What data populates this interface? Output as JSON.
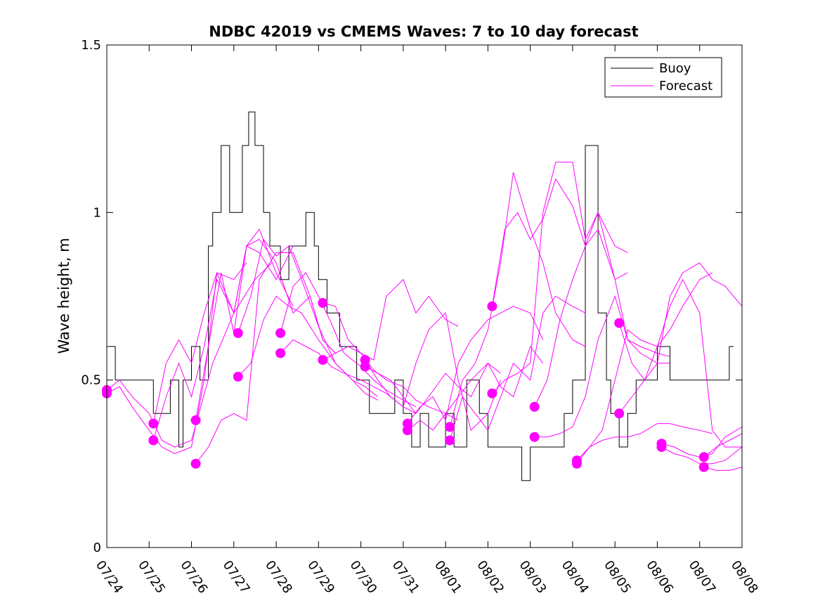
{
  "chart_data": {
    "type": "line",
    "title": "NDBC 42019 vs CMEMS Waves: 7 to 10 day forecast",
    "xlabel": "",
    "ylabel": "Wave height, m",
    "xlim": [
      0,
      15
    ],
    "ylim": [
      0,
      1.5
    ],
    "x_tick_labels": [
      "07/24",
      "07/25",
      "07/26",
      "07/27",
      "07/28",
      "07/29",
      "07/30",
      "07/31",
      "08/01",
      "08/02",
      "08/03",
      "08/04",
      "08/05",
      "08/06",
      "08/07",
      "08/08"
    ],
    "y_ticks": [
      0,
      0.5,
      1,
      1.5
    ],
    "y_tick_labels": [
      "0",
      "0.5",
      "1",
      "1.5"
    ],
    "legend": {
      "position": "top-right",
      "entries": [
        {
          "label": "Buoy",
          "color": "#000000"
        },
        {
          "label": "Forecast",
          "color": "#ff00ff"
        }
      ]
    },
    "series": [
      {
        "name": "Buoy",
        "color": "#000000",
        "x": [
          0,
          0.15,
          0.2,
          0.3,
          0.9,
          1.1,
          1.3,
          1.5,
          1.7,
          1.8,
          2.0,
          2.2,
          2.4,
          2.5,
          2.6,
          2.7,
          2.9,
          3.0,
          3.2,
          3.35,
          3.5,
          3.7,
          3.85,
          4.0,
          4.1,
          4.3,
          4.45,
          4.7,
          4.9,
          5.0,
          5.2,
          5.4,
          5.5,
          5.7,
          5.9,
          6.0,
          6.2,
          6.5,
          6.8,
          7.0,
          7.2,
          7.4,
          7.5,
          7.6,
          7.8,
          8.0,
          8.2,
          8.5,
          8.8,
          9.0,
          9.3,
          9.6,
          9.8,
          10.0,
          10.3,
          10.6,
          10.8,
          11.0,
          11.3,
          11.6,
          11.8,
          11.9,
          12.0,
          12.1,
          12.3,
          12.5,
          12.8,
          13.0,
          13.3,
          13.5,
          14.0,
          14.5,
          14.7,
          14.8
        ],
        "y": [
          0.6,
          0.6,
          0.5,
          0.5,
          0.5,
          0.4,
          0.4,
          0.5,
          0.3,
          0.5,
          0.6,
          0.5,
          0.9,
          1.0,
          1.0,
          1.2,
          1.0,
          1.0,
          1.2,
          1.3,
          1.2,
          1.0,
          0.9,
          0.9,
          0.8,
          0.9,
          0.9,
          1.0,
          0.9,
          0.8,
          0.7,
          0.7,
          0.6,
          0.6,
          0.5,
          0.5,
          0.4,
          0.4,
          0.5,
          0.4,
          0.3,
          0.4,
          0.4,
          0.3,
          0.3,
          0.4,
          0.3,
          0.5,
          0.4,
          0.3,
          0.3,
          0.3,
          0.2,
          0.3,
          0.3,
          0.3,
          0.4,
          0.5,
          1.2,
          0.7,
          0.5,
          0.4,
          0.4,
          0.3,
          0.4,
          0.5,
          0.5,
          0.6,
          0.5,
          0.5,
          0.5,
          0.5,
          0.6,
          0.6
        ]
      },
      {
        "name": "Forecast",
        "color": "#ff00ff",
        "x": [
          0,
          0.3,
          0.6,
          1.0,
          1.3,
          1.6,
          2.0,
          2.5,
          3.0,
          3.5,
          3.9
        ],
        "y": [
          0.47,
          0.5,
          0.45,
          0.4,
          0.32,
          0.3,
          0.32,
          0.55,
          0.7,
          0.8,
          0.85
        ]
      },
      {
        "name": "Forecast",
        "color": "#ff00ff",
        "x": [
          0,
          0.3,
          0.6,
          1.0,
          1.3,
          1.6,
          2.0,
          2.3,
          2.6,
          3.0,
          3.3
        ],
        "y": [
          0.46,
          0.48,
          0.42,
          0.35,
          0.3,
          0.28,
          0.3,
          0.5,
          0.82,
          0.8,
          0.85
        ]
      },
      {
        "name": "Forecast",
        "color": "#ff00ff",
        "x": [
          1.1,
          1.4,
          1.7,
          2.0,
          2.3,
          2.6,
          3.0,
          3.3,
          3.6,
          4.0,
          4.4
        ],
        "y": [
          0.37,
          0.55,
          0.62,
          0.55,
          0.7,
          0.82,
          0.7,
          0.9,
          0.88,
          0.8,
          0.9
        ]
      },
      {
        "name": "Forecast",
        "color": "#ff00ff",
        "x": [
          1.1,
          1.4,
          1.7,
          2.0,
          2.3,
          2.6,
          3.0,
          3.3,
          3.6,
          4.0,
          4.4
        ],
        "y": [
          0.32,
          0.45,
          0.55,
          0.45,
          0.6,
          0.8,
          0.7,
          0.9,
          0.95,
          0.82,
          0.72
        ]
      },
      {
        "name": "Forecast",
        "color": "#ff00ff",
        "x": [
          2.1,
          2.4,
          2.7,
          3.0,
          3.3,
          3.6,
          4.0,
          4.4,
          4.8,
          5.1,
          5.4
        ],
        "y": [
          0.25,
          0.3,
          0.38,
          0.4,
          0.38,
          0.8,
          0.88,
          0.88,
          0.75,
          0.62,
          0.58
        ]
      },
      {
        "name": "Forecast",
        "color": "#ff00ff",
        "x": [
          2.1,
          2.4,
          2.7,
          3.0,
          3.3,
          3.6,
          4.0,
          4.4,
          4.8,
          5.1,
          5.4
        ],
        "y": [
          0.38,
          0.6,
          0.82,
          0.64,
          0.9,
          0.92,
          0.85,
          0.7,
          0.75,
          0.62,
          0.58
        ]
      },
      {
        "name": "Forecast",
        "color": "#ff00ff",
        "x": [
          3.1,
          3.4,
          3.7,
          4.0,
          4.3,
          4.6,
          5.0,
          5.4,
          5.8,
          6.1,
          6.4
        ],
        "y": [
          0.64,
          0.75,
          0.92,
          0.87,
          0.9,
          0.8,
          0.66,
          0.55,
          0.5,
          0.48,
          0.45
        ]
      },
      {
        "name": "Forecast",
        "color": "#ff00ff",
        "x": [
          3.1,
          3.4,
          3.7,
          4.0,
          4.3,
          4.6,
          5.0,
          5.4,
          5.8,
          6.1,
          6.4
        ],
        "y": [
          0.51,
          0.55,
          0.68,
          0.75,
          0.72,
          0.7,
          0.62,
          0.55,
          0.5,
          0.46,
          0.44
        ]
      },
      {
        "name": "Forecast",
        "color": "#ff00ff",
        "x": [
          4.1,
          4.4,
          4.7,
          5.0,
          5.3,
          5.6,
          6.0,
          6.3,
          6.6,
          7.0,
          7.3
        ],
        "y": [
          0.64,
          0.78,
          0.82,
          0.75,
          0.67,
          0.58,
          0.54,
          0.5,
          0.47,
          0.44,
          0.42
        ]
      },
      {
        "name": "Forecast",
        "color": "#ff00ff",
        "x": [
          4.1,
          4.4,
          4.7,
          5.0,
          5.3,
          5.6,
          6.0,
          6.3,
          6.6,
          7.0,
          7.3
        ],
        "y": [
          0.58,
          0.62,
          0.6,
          0.58,
          0.54,
          0.52,
          0.5,
          0.48,
          0.46,
          0.42,
          0.4
        ]
      },
      {
        "name": "Forecast",
        "color": "#ff00ff",
        "x": [
          5.1,
          5.4,
          5.7,
          6.0,
          6.3,
          6.6,
          7.0,
          7.3,
          7.6,
          8.0,
          8.3
        ],
        "y": [
          0.73,
          0.72,
          0.62,
          0.58,
          0.56,
          0.75,
          0.8,
          0.7,
          0.75,
          0.68,
          0.66
        ]
      },
      {
        "name": "Forecast",
        "color": "#ff00ff",
        "x": [
          5.1,
          5.4,
          5.7,
          6.0,
          6.3,
          6.6,
          7.0,
          7.3,
          7.6,
          8.0,
          8.3
        ],
        "y": [
          0.56,
          0.58,
          0.6,
          0.58,
          0.53,
          0.5,
          0.48,
          0.44,
          0.42,
          0.4,
          0.38
        ]
      },
      {
        "name": "Forecast",
        "color": "#ff00ff",
        "x": [
          6.1,
          6.4,
          6.7,
          7.0,
          7.3,
          7.6,
          8.0,
          8.3,
          8.6,
          9.0,
          9.3
        ],
        "y": [
          0.56,
          0.5,
          0.45,
          0.42,
          0.55,
          0.65,
          0.7,
          0.5,
          0.35,
          0.4,
          0.5
        ]
      },
      {
        "name": "Forecast",
        "color": "#ff00ff",
        "x": [
          6.1,
          6.4,
          6.7,
          7.0,
          7.3,
          7.6,
          8.0,
          8.3,
          8.6,
          9.0,
          9.3
        ],
        "y": [
          0.54,
          0.52,
          0.5,
          0.45,
          0.4,
          0.45,
          0.52,
          0.48,
          0.45,
          0.55,
          0.52
        ]
      },
      {
        "name": "Forecast",
        "color": "#ff00ff",
        "x": [
          7.1,
          7.4,
          7.7,
          8.0,
          8.3,
          8.6,
          9.0,
          9.3,
          9.6,
          10.0,
          10.3
        ],
        "y": [
          0.37,
          0.42,
          0.45,
          0.38,
          0.55,
          0.62,
          0.68,
          0.7,
          0.72,
          0.7,
          0.62
        ]
      },
      {
        "name": "Forecast",
        "color": "#ff00ff",
        "x": [
          7.1,
          7.4,
          7.7,
          8.0,
          8.3,
          8.6,
          9.0,
          9.3,
          9.6,
          10.0,
          10.3
        ],
        "y": [
          0.35,
          0.38,
          0.35,
          0.4,
          0.45,
          0.5,
          0.55,
          0.48,
          0.45,
          0.6,
          0.55
        ]
      },
      {
        "name": "Forecast",
        "color": "#ff00ff",
        "x": [
          8.1,
          8.4,
          8.7,
          9.0,
          9.3,
          9.6,
          10.0,
          10.3,
          10.6,
          11.0,
          11.3
        ],
        "y": [
          0.36,
          0.5,
          0.55,
          0.65,
          0.85,
          1.12,
          0.95,
          0.85,
          0.7,
          0.62,
          0.6
        ]
      },
      {
        "name": "Forecast",
        "color": "#ff00ff",
        "x": [
          8.1,
          8.4,
          8.7,
          9.0,
          9.3,
          9.6,
          10.0,
          10.3,
          10.6,
          11.0,
          11.3
        ],
        "y": [
          0.32,
          0.45,
          0.4,
          0.35,
          0.45,
          0.55,
          0.5,
          0.7,
          0.75,
          0.72,
          0.7
        ]
      },
      {
        "name": "Forecast",
        "color": "#ff00ff",
        "x": [
          9.1,
          9.4,
          9.7,
          10.0,
          10.3,
          10.6,
          11.0,
          11.3,
          11.6,
          12.0,
          12.3
        ],
        "y": [
          0.72,
          0.95,
          1.0,
          0.92,
          0.98,
          1.1,
          1.02,
          0.9,
          0.95,
          0.8,
          0.82
        ]
      },
      {
        "name": "Forecast",
        "color": "#ff00ff",
        "x": [
          9.1,
          9.4,
          9.7,
          10.0,
          10.3,
          10.6,
          11.0,
          11.3,
          11.6,
          12.0,
          12.3
        ],
        "y": [
          0.46,
          0.5,
          0.52,
          0.55,
          1.0,
          1.15,
          1.15,
          0.92,
          1.0,
          0.9,
          0.88
        ]
      },
      {
        "name": "Forecast",
        "color": "#ff00ff",
        "x": [
          10.1,
          10.4,
          10.7,
          11.0,
          11.3,
          11.6,
          12.0,
          12.3,
          12.6,
          13.0,
          13.3
        ],
        "y": [
          0.42,
          0.5,
          0.68,
          0.8,
          0.9,
          1.0,
          0.8,
          0.62,
          0.58,
          0.55,
          0.55
        ]
      },
      {
        "name": "Forecast",
        "color": "#ff00ff",
        "x": [
          10.1,
          10.4,
          10.7,
          11.0,
          11.3,
          11.6,
          12.0,
          12.3,
          12.6,
          13.0,
          13.3
        ],
        "y": [
          0.33,
          0.33,
          0.34,
          0.36,
          0.45,
          0.62,
          0.75,
          0.62,
          0.6,
          0.58,
          0.57
        ]
      },
      {
        "name": "Forecast",
        "color": "#ff00ff",
        "x": [
          11.1,
          11.4,
          11.7,
          12.0,
          12.3,
          12.6,
          13.0,
          13.3,
          13.6,
          14.0,
          14.3
        ],
        "y": [
          0.26,
          0.3,
          0.32,
          0.33,
          0.33,
          0.34,
          0.37,
          0.37,
          0.36,
          0.35,
          0.34
        ]
      },
      {
        "name": "Forecast",
        "color": "#ff00ff",
        "x": [
          11.1,
          11.4,
          11.7,
          12.0,
          12.3,
          12.6,
          13.0,
          13.3,
          13.6,
          14.0,
          14.3
        ],
        "y": [
          0.25,
          0.3,
          0.35,
          0.5,
          0.65,
          0.62,
          0.6,
          0.65,
          0.72,
          0.8,
          0.82
        ]
      },
      {
        "name": "Forecast",
        "color": "#ff00ff",
        "x": [
          12.1,
          12.4,
          12.7,
          13.0,
          13.3,
          13.6,
          14.0,
          14.3,
          14.6,
          15.0
        ],
        "y": [
          0.67,
          0.55,
          0.5,
          0.55,
          0.75,
          0.82,
          0.85,
          0.8,
          0.78,
          0.72
        ]
      },
      {
        "name": "Forecast",
        "color": "#ff00ff",
        "x": [
          12.1,
          12.4,
          12.7,
          13.0,
          13.3,
          13.6,
          14.0,
          14.3,
          14.6,
          15.0
        ],
        "y": [
          0.4,
          0.45,
          0.5,
          0.6,
          0.72,
          0.8,
          0.7,
          0.35,
          0.3,
          0.3
        ]
      },
      {
        "name": "Forecast",
        "color": "#ff00ff",
        "x": [
          13.1,
          13.4,
          13.7,
          14.0,
          14.3,
          14.6,
          15.0
        ],
        "y": [
          0.31,
          0.3,
          0.28,
          0.27,
          0.28,
          0.33,
          0.36
        ]
      },
      {
        "name": "Forecast",
        "color": "#ff00ff",
        "x": [
          13.1,
          13.4,
          13.7,
          14.0,
          14.3,
          14.6,
          15.0
        ],
        "y": [
          0.3,
          0.28,
          0.27,
          0.25,
          0.25,
          0.26,
          0.3
        ]
      },
      {
        "name": "Forecast",
        "color": "#ff00ff",
        "x": [
          14.1,
          14.4,
          14.7,
          15.0
        ],
        "y": [
          0.27,
          0.3,
          0.32,
          0.34
        ]
      },
      {
        "name": "Forecast",
        "color": "#ff00ff",
        "x": [
          14.1,
          14.4,
          14.7,
          15.0
        ],
        "y": [
          0.24,
          0.23,
          0.23,
          0.24
        ]
      }
    ],
    "markers": {
      "name": "Forecast",
      "color": "#ff00ff",
      "x": [
        0,
        0,
        1.1,
        1.1,
        2.1,
        2.1,
        3.1,
        3.1,
        4.1,
        4.1,
        5.1,
        5.1,
        6.1,
        6.1,
        7.1,
        7.1,
        8.1,
        8.1,
        9.1,
        9.1,
        10.1,
        10.1,
        11.1,
        11.1,
        12.1,
        12.1,
        13.1,
        13.1,
        14.1,
        14.1
      ],
      "y": [
        0.47,
        0.46,
        0.37,
        0.32,
        0.38,
        0.25,
        0.64,
        0.51,
        0.64,
        0.58,
        0.73,
        0.56,
        0.56,
        0.54,
        0.37,
        0.35,
        0.36,
        0.32,
        0.72,
        0.46,
        0.42,
        0.33,
        0.26,
        0.25,
        0.67,
        0.4,
        0.31,
        0.3,
        0.27,
        0.24
      ]
    }
  }
}
